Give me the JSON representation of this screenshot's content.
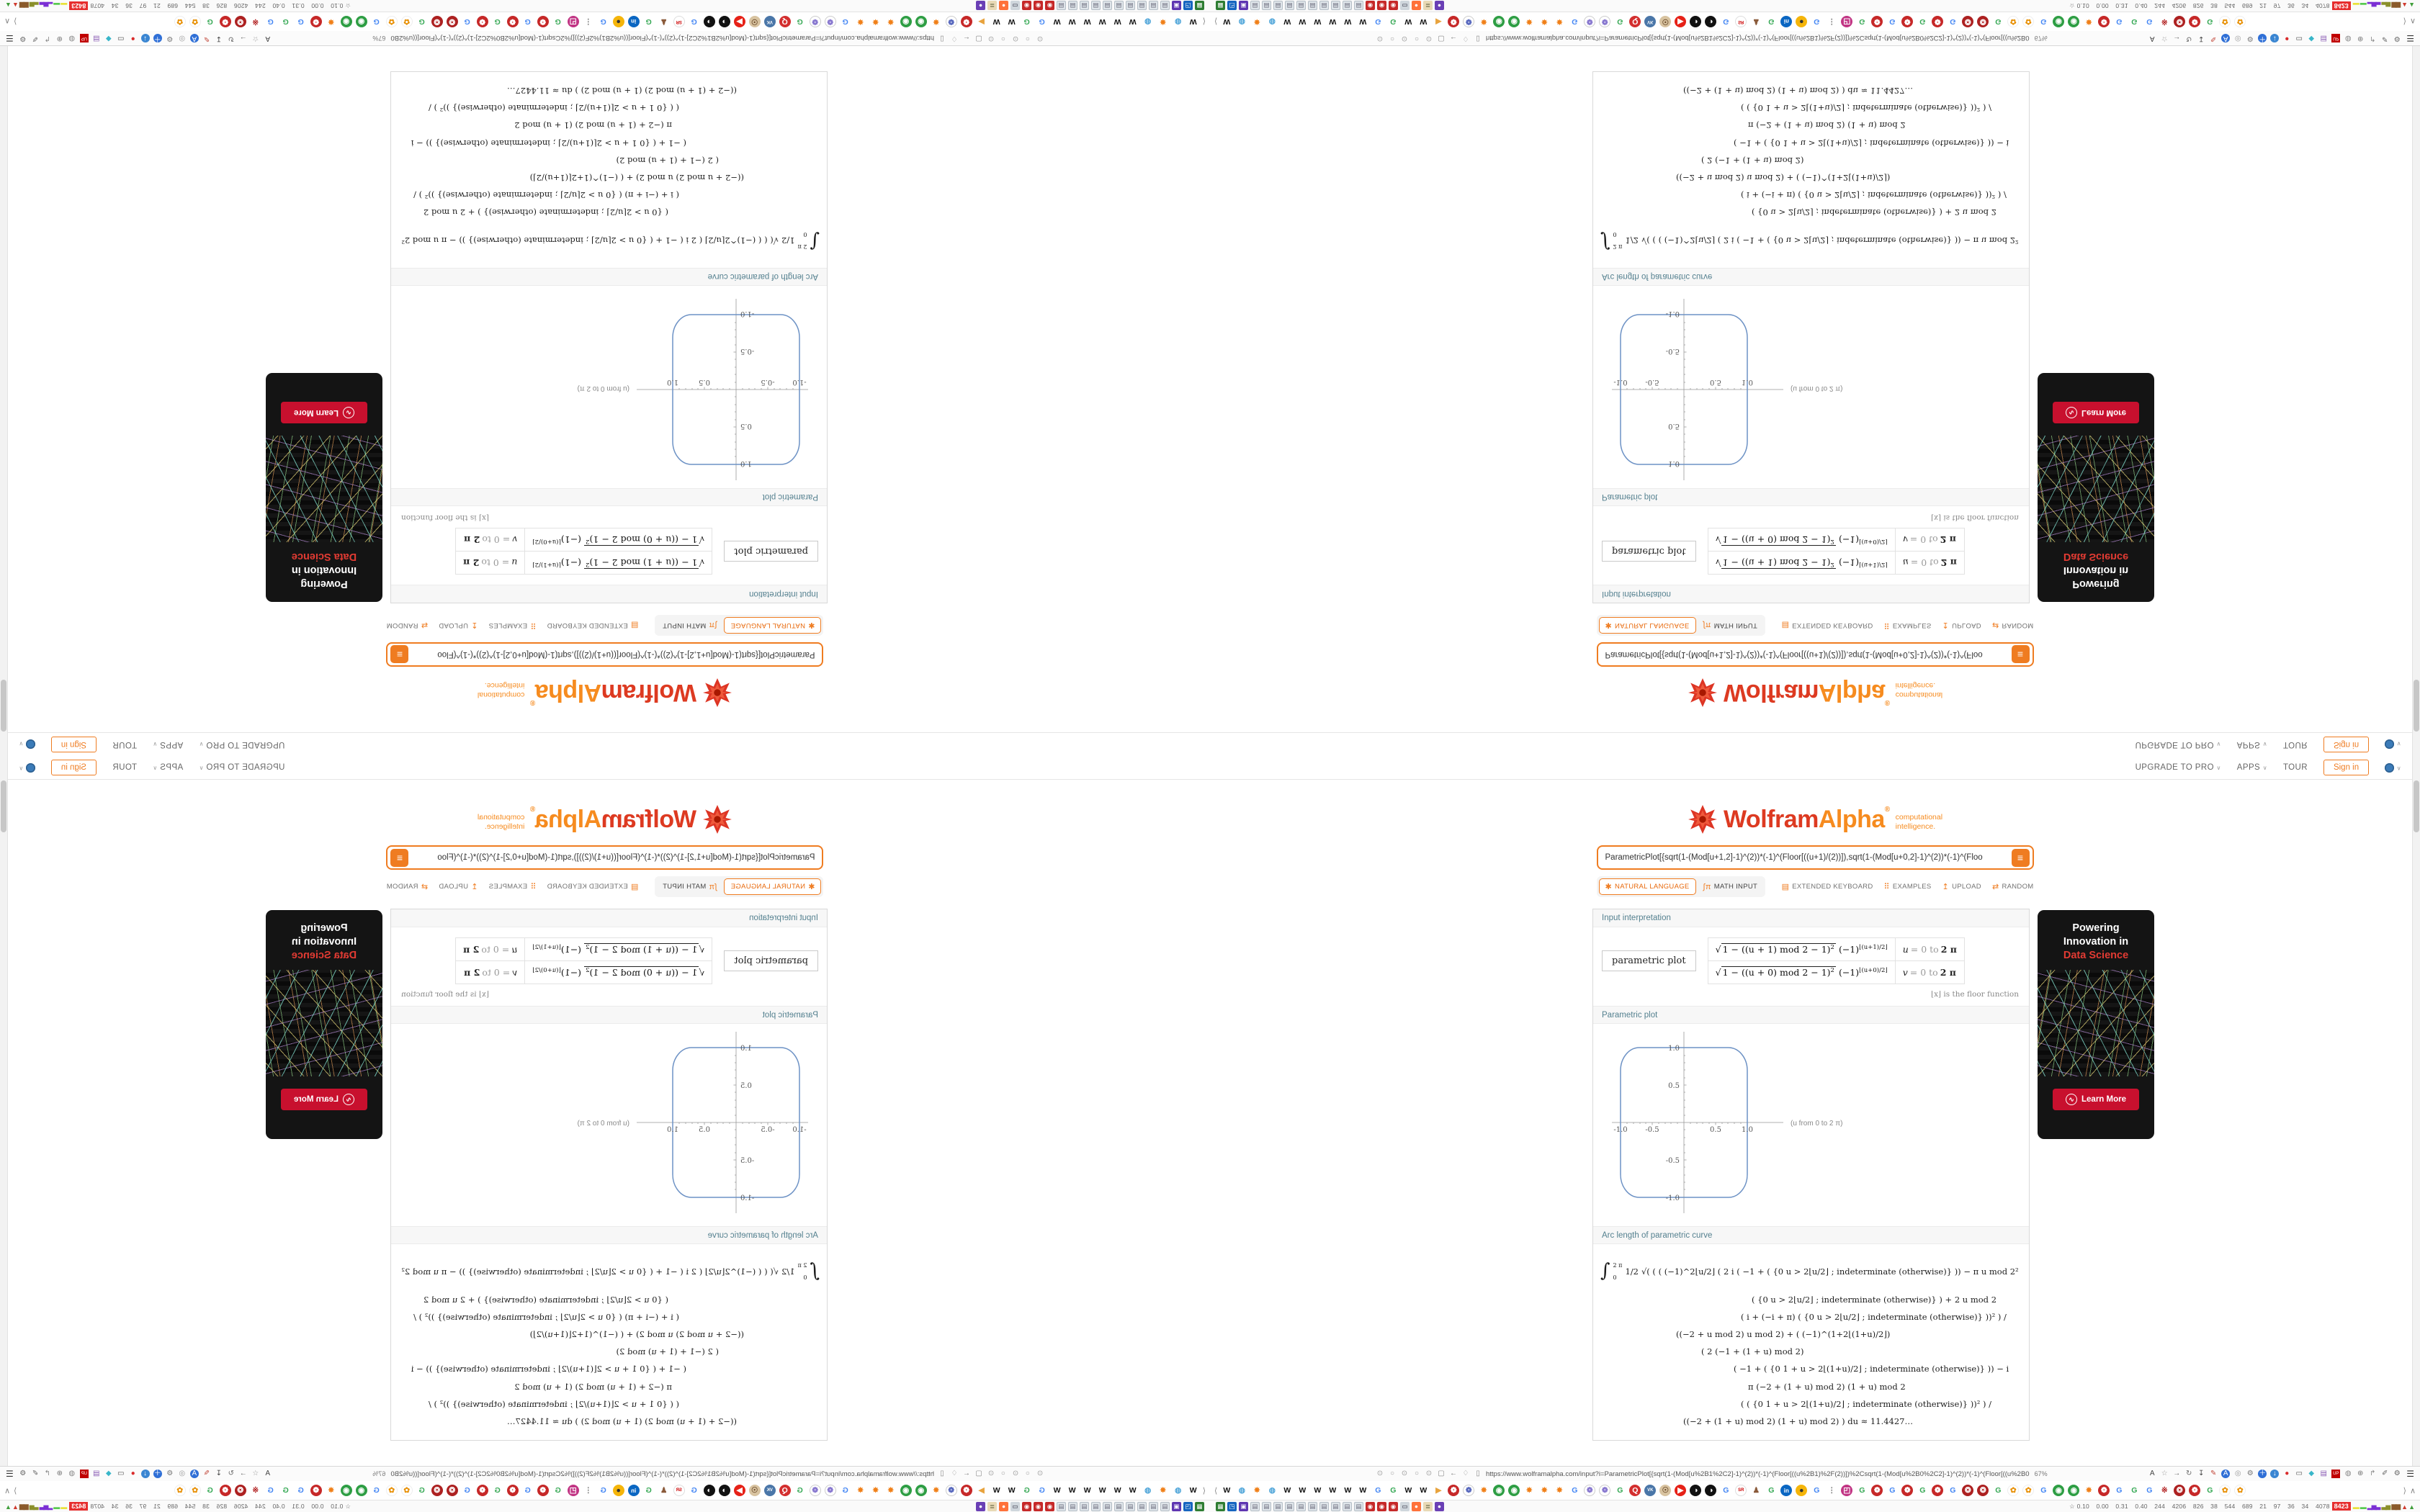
{
  "accent": {
    "orange": "#ef7c21",
    "logo_red": "#dd3a21",
    "logo_orange": "#f68b1f",
    "pod_title": "#54808f",
    "plot_line": "#6d92c5",
    "ad_red": "#c8102e"
  },
  "nav": {
    "items": [
      {
        "label": "UPGRADE TO PRO",
        "caret": "∨"
      },
      {
        "label": "APPS",
        "caret": "∨"
      },
      {
        "label": "TOUR",
        "caret": ""
      }
    ],
    "signin": "Sign in",
    "globe_caret": "∨"
  },
  "logo": {
    "wolfram": "Wolfram",
    "alpha": "Alpha",
    "reg": "®",
    "tag1": "computational",
    "tag2": "intelligence."
  },
  "search": {
    "query": "ParametricPlot[{sqrt(1-(Mod[u+1,2]-1)^(2))*(-1)^(Floor[((u+1)/(2))]),sqrt(1-(Mod[u+0,2]-1)^(2))*(-1)^(Floo",
    "compute_glyph": "≡"
  },
  "modes": {
    "natural": "NATURAL LANGUAGE",
    "natural_icon": "✱",
    "math": "MATH INPUT",
    "math_icon": "∫π"
  },
  "tools": [
    {
      "icon": "▤",
      "label": "EXTENDED KEYBOARD"
    },
    {
      "icon": "⠿",
      "label": "EXAMPLES"
    },
    {
      "icon": "↥",
      "label": "UPLOAD"
    },
    {
      "icon": "⇄",
      "label": "RANDOM"
    }
  ],
  "interp": {
    "title": "Input interpretation",
    "label": "parametric plot",
    "rows": [
      {
        "sqrt": "√",
        "rad": "1 − ((u + 1) mod 2 − 1)",
        "pow": "2",
        "tail": "(−1)",
        "exp": "⌊(u+1)/2⌋",
        "var": "u",
        "eq": "= 0 to",
        "end": "2 π"
      },
      {
        "sqrt": "√",
        "rad": "1 − ((u + 0) mod 2 − 1)",
        "pow": "2",
        "tail": "(−1)",
        "exp": "⌊(u+0)/2⌋",
        "var": "v",
        "eq": "= 0 to",
        "end": "2 π"
      }
    ],
    "footnote": "⌊x⌋ is the floor function"
  },
  "plot": {
    "title": "Parametric plot",
    "note": "(u from 0 to 2 π)",
    "xt1": "-1.0",
    "xt2": "-0.5",
    "xt3": "0.5",
    "xt4": "1.0",
    "yt1": "1.0",
    "yt2": "0.5",
    "yt3": "-0.5",
    "yt4": "-1.0"
  },
  "chart_data": {
    "type": "line",
    "title": "Parametric plot",
    "parametric": {
      "x": "sqrt(1-((u+1) mod 2 - 1)^2) * (-1)^floor((u+1)/2)",
      "y": "sqrt(1-((u+0) mod 2 - 1)^2) * (-1)^floor((u+0)/2)",
      "u_range": [
        0,
        6.2832
      ]
    },
    "shape": "rounded square (squircle) through (±1,0) and (0,±1)",
    "xlim": [
      -1.2,
      1.45
    ],
    "ylim": [
      -1.2,
      1.2
    ],
    "xticks": [
      -1.0,
      -0.5,
      0.5,
      1.0
    ],
    "yticks": [
      -1.0,
      -0.5,
      0.5,
      1.0
    ],
    "grid": false,
    "legend": "none",
    "annotation": "(u from 0 to 2 π)",
    "arc_length": 11.4427
  },
  "arc": {
    "title": "Arc length of parametric curve",
    "int_hi": "2 π",
    "int_lo": "0",
    "frac": "1/2",
    "line1": "√( ( ( (−1)^2⌊u/2⌋ ( 2 i ( −1 + ( {0   u > 2⌊u/2⌋ ;  indeterminate  (otherwise)} )) − π u mod 2²",
    "lines": [
      {
        "t": "( {0   u > 2⌊u/2⌋ ;  indeterminate  (otherwise)} ) + 2 u mod 2",
        "p": 210
      },
      {
        "t": "( i + (−i + π) ( {0   u > 2⌊u/2⌋ ;  indeterminate  (otherwise)} ))² ) /",
        "p": 195
      },
      {
        "t": "((−2 + u mod 2) u mod 2) + ( (−1)^(1+2⌊(1+u)/2⌋)",
        "p": 105
      },
      {
        "t": "( 2 (−1 + (1 + u) mod 2)",
        "p": 140
      },
      {
        "t": "( −1 + ( {0   1 + u > 2⌊(1+u)/2⌋ ;  indeterminate  (otherwise)} )) − i",
        "p": 185
      },
      {
        "t": "π (−2 + (1 + u) mod 2) (1 + u) mod 2",
        "p": 205
      },
      {
        "t": "( ( {0   1 + u > 2⌊(1+u)/2⌋ ;  indeterminate  (otherwise)} ))² ) /",
        "p": 195
      },
      {
        "t": "((−2 + (1 + u) mod 2) (1 + u) mod 2) ) du ≈ 11.4427…",
        "p": 115
      }
    ]
  },
  "ad": {
    "t1a": "Powering",
    "t1b": "Innovation in",
    "t2": "Data Science",
    "button": "Learn More",
    "wolf": "∿"
  },
  "chrome": {
    "url": "https://www.wolframalpha.com/input?i=ParametricPlot[{sqrt(1-(Mod[u%2B1%2C2]-1)^(2))*(-1)^(Floor[((u%2B1)%2F(2))])%2Csqrt(1-(Mod[u%2B0%2C2]-1)^(2))*(-1)^(Floor[((u%2B0",
    "zoom": "67%",
    "hamburger": "☰",
    "book_left": "⟨",
    "book_right": "⟩",
    "book_up": "∧",
    "url_left": [
      {
        "g": "⊙",
        "c": "#9a9a9a"
      },
      {
        "g": "○",
        "c": "#9a9a9a"
      },
      {
        "g": "⊙",
        "c": "#9a9a9a"
      },
      {
        "g": "○",
        "c": "#9a9a9a"
      },
      {
        "g": "⊙",
        "c": "#9a9a9a"
      },
      {
        "g": "▢",
        "c": "#8a8a8a"
      },
      {
        "g": "←",
        "c": "#777"
      },
      {
        "g": "♢",
        "c": "#8a8a8a"
      },
      {
        "g": "▯",
        "c": "#8a8a8a"
      }
    ],
    "url_right": [
      {
        "g": "A",
        "c": "#444"
      },
      {
        "g": "☆",
        "c": "#999"
      },
      {
        "g": "→",
        "c": "#666"
      },
      {
        "g": "↻",
        "c": "#666"
      },
      {
        "g": "↧",
        "c": "#444"
      },
      {
        "g": "✎",
        "c": "#c2483a"
      },
      {
        "g": "A",
        "c": "#fff",
        "b": "#2f6fd6",
        "r": "50%"
      },
      {
        "g": "◎",
        "c": "#999"
      },
      {
        "g": "⚙",
        "c": "#777"
      },
      {
        "g": "＋",
        "c": "#fff",
        "b": "#2f6fd6",
        "r": "50%"
      },
      {
        "g": "↓",
        "c": "#fff",
        "b": "#3a86d2",
        "r": "50%"
      },
      {
        "g": "●",
        "c": "#d92b2b"
      },
      {
        "g": "▭",
        "c": "#555"
      },
      {
        "g": "◆",
        "c": "#38b6c9"
      },
      {
        "g": "▤",
        "c": "#8a5db5"
      },
      {
        "g": "UP",
        "c": "#fff",
        "b": "#c00000",
        "f": "6px"
      },
      {
        "g": "◍",
        "c": "#888"
      },
      {
        "g": "⊕",
        "c": "#777"
      },
      {
        "g": "↱",
        "c": "#888"
      },
      {
        "g": "✐",
        "c": "#666"
      },
      {
        "g": "⚙",
        "c": "#666"
      }
    ],
    "bookmarks": [
      {
        "g": "W",
        "c": "#111"
      },
      {
        "g": "◍",
        "c": "#4aa3d8"
      },
      {
        "g": "✸",
        "c": "#f08019"
      },
      {
        "g": "◍",
        "c": "#4aa3d8"
      },
      {
        "g": "W",
        "c": "#111"
      },
      {
        "g": "W",
        "c": "#111"
      },
      {
        "g": "W",
        "c": "#111"
      },
      {
        "g": "W",
        "c": "#111"
      },
      {
        "g": "W",
        "c": "#111"
      },
      {
        "g": "W",
        "c": "#111"
      },
      {
        "g": "G",
        "c": "#4285f4"
      },
      {
        "g": "G",
        "c": "#34a853"
      },
      {
        "g": "W",
        "c": "#111"
      },
      {
        "g": "W",
        "c": "#111"
      },
      {
        "g": "▶",
        "c": "#e8a33d"
      },
      {
        "g": "❁",
        "c": "#fff",
        "b": "#c62828"
      },
      {
        "g": "❁",
        "c": "#5b6bbf",
        "bd": "1px solid #ccc"
      },
      {
        "g": "✸",
        "c": "#f08019"
      },
      {
        "g": "◉",
        "c": "#fff",
        "b": "#2e9e44"
      },
      {
        "g": "◉",
        "c": "#fff",
        "b": "#2e9e44"
      },
      {
        "g": "✸",
        "c": "#f08019"
      },
      {
        "g": "✸",
        "c": "#f08019"
      },
      {
        "g": "✸",
        "c": "#f08019"
      },
      {
        "g": "G",
        "c": "#4285f4"
      },
      {
        "g": "❁",
        "c": "#8a7ad0",
        "bd": "1px solid #ccc"
      },
      {
        "g": "❁",
        "c": "#8a7ad0",
        "bd": "1px solid #ccc"
      },
      {
        "g": "G",
        "c": "#34a853"
      },
      {
        "g": "Q",
        "c": "#fff",
        "b": "#d32f2f"
      },
      {
        "g": "VK",
        "c": "#fff",
        "b": "#4a76a8",
        "f": "6px"
      },
      {
        "g": "☉",
        "c": "#6b4a2a",
        "b": "#d8c3a0"
      },
      {
        "g": "▶",
        "c": "#fff",
        "b": "#e62117"
      },
      {
        "g": "◑",
        "c": "#fff",
        "b": "#111"
      },
      {
        "g": "◑",
        "c": "#fff",
        "b": "#111"
      },
      {
        "g": "G",
        "c": "#4285f4"
      },
      {
        "g": "SR",
        "c": "#c00",
        "bd": "1px solid #ddd",
        "f": "6px"
      },
      {
        "g": "♟",
        "c": "#8a5a3a"
      },
      {
        "g": "G",
        "c": "#34a853"
      },
      {
        "g": "in",
        "c": "#fff",
        "b": "#0a66c2",
        "f": "8px"
      },
      {
        "g": "●",
        "c": "#333",
        "b": "#f5b50a"
      },
      {
        "g": "G",
        "c": "#4285f4"
      },
      {
        "g": "⋮",
        "c": "#888"
      },
      {
        "g": "◰",
        "c": "#fff",
        "b": "#c13584"
      },
      {
        "g": "G",
        "c": "#34a853"
      },
      {
        "g": "❁",
        "c": "#fff",
        "b": "#c62828"
      },
      {
        "g": "G",
        "c": "#4285f4"
      },
      {
        "g": "❁",
        "c": "#fff",
        "b": "#c62828"
      },
      {
        "g": "G",
        "c": "#34a853"
      },
      {
        "g": "❁",
        "c": "#fff",
        "b": "#c62828"
      },
      {
        "g": "G",
        "c": "#4285f4"
      },
      {
        "g": "❂",
        "c": "#fff",
        "b": "#ad2121"
      },
      {
        "g": "❂",
        "c": "#fff",
        "b": "#ad2121"
      },
      {
        "g": "G",
        "c": "#34a853"
      },
      {
        "g": "✿",
        "c": "#e8920a",
        "bd": "1px solid #eee"
      },
      {
        "g": "✿",
        "c": "#e8920a",
        "bd": "1px solid #eee"
      },
      {
        "g": "G",
        "c": "#4285f4"
      },
      {
        "g": "◉",
        "c": "#fff",
        "b": "#2e9e44"
      },
      {
        "g": "◉",
        "c": "#fff",
        "b": "#2e9e44"
      },
      {
        "g": "✸",
        "c": "#f08019"
      },
      {
        "g": "❁",
        "c": "#fff",
        "b": "#c62828"
      },
      {
        "g": "G",
        "c": "#4285f4"
      },
      {
        "g": "G",
        "c": "#34a853"
      },
      {
        "g": "G",
        "c": "#4285f4"
      },
      {
        "g": "※",
        "c": "#b22222"
      },
      {
        "g": "❂",
        "c": "#fff",
        "b": "#ad2121"
      },
      {
        "g": "❁",
        "c": "#fff",
        "b": "#c62828"
      },
      {
        "g": "G",
        "c": "#34a853"
      },
      {
        "g": "✿",
        "c": "#e8920a",
        "bd": "1px solid #eee"
      },
      {
        "g": "✿",
        "c": "#e8920a",
        "bd": "1px solid #eee"
      }
    ],
    "tray_left": [
      {
        "g": "▦",
        "c": "#fff",
        "b": "#2e7d32"
      },
      {
        "g": "◳",
        "c": "#fff",
        "b": "#1565c0"
      },
      {
        "g": "▣",
        "c": "#fff",
        "b": "#5e35b1"
      },
      {
        "g": "▤",
        "c": "#667",
        "b": "#dfe5ea",
        "bd": "1px solid #b5bec6"
      },
      {
        "g": "▤",
        "c": "#667",
        "b": "#dfe5ea",
        "bd": "1px solid #b5bec6"
      },
      {
        "g": "▤",
        "c": "#667",
        "b": "#dfe5ea",
        "bd": "1px solid #b5bec6"
      },
      {
        "g": "▤",
        "c": "#667",
        "b": "#dfe5ea",
        "bd": "1px solid #b5bec6"
      },
      {
        "g": "▤",
        "c": "#667",
        "b": "#dfe5ea",
        "bd": "1px solid #b5bec6"
      },
      {
        "g": "▤",
        "c": "#667",
        "b": "#dfe5ea",
        "bd": "1px solid #b5bec6"
      },
      {
        "g": "▤",
        "c": "#667",
        "b": "#dfe5ea",
        "bd": "1px solid #b5bec6"
      },
      {
        "g": "▤",
        "c": "#667",
        "b": "#dfe5ea",
        "bd": "1px solid #b5bec6"
      },
      {
        "g": "▤",
        "c": "#667",
        "b": "#dfe5ea",
        "bd": "1px solid #b5bec6"
      },
      {
        "g": "▤",
        "c": "#667",
        "b": "#dfe5ea",
        "bd": "1px solid #b5bec6"
      },
      {
        "g": "◉",
        "c": "#fff",
        "b": "#c62828"
      },
      {
        "g": "◉",
        "c": "#fff",
        "b": "#c62828"
      },
      {
        "g": "◉",
        "c": "#fff",
        "b": "#c62828"
      },
      {
        "g": "▭",
        "c": "#223",
        "b": "#cfd6dc"
      },
      {
        "g": "●",
        "c": "#fff",
        "b": "#ff7139"
      },
      {
        "g": "≣",
        "c": "#553",
        "b": "#e8d9b5"
      },
      {
        "g": "●",
        "c": "#fff",
        "b": "#6a3fb5"
      }
    ],
    "tray_person": "☆",
    "tray_nums": "0.10 0.00 0.31 0.40 244 4206 826 38 544 689 21 97 36 34 4078",
    "tray_alert": "8423",
    "tray_graph": [
      {
        "g": "▬",
        "c": "#e8e23a"
      },
      {
        "g": "▬",
        "c": "#57c94f"
      },
      {
        "g": "▂▅▃",
        "c": "#7b2fd4"
      },
      {
        "g": "▃▅",
        "c": "#8a8f2a"
      },
      {
        "g": "▆▆",
        "c": "#8a5a2b"
      },
      {
        "g": "▲",
        "c": "#cf3b2f"
      },
      {
        "g": "▲",
        "c": "#3f9e3a"
      }
    ]
  }
}
